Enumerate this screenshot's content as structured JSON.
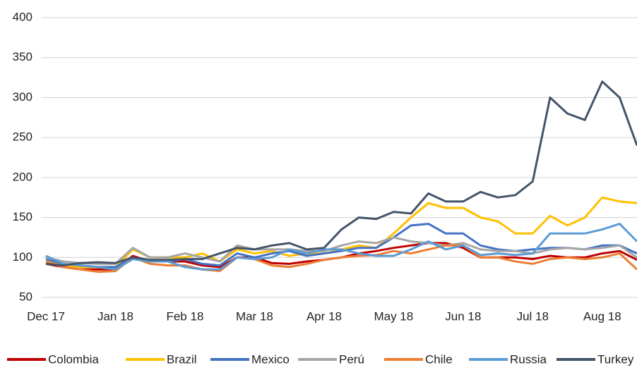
{
  "chart_data": {
    "type": "line",
    "categories": [
      "Dec 17",
      null,
      null,
      null,
      "Jan 18",
      null,
      null,
      null,
      "Feb 18",
      null,
      null,
      null,
      "Mar 18",
      null,
      null,
      null,
      "Apr 18",
      null,
      null,
      null,
      "May 18",
      null,
      null,
      null,
      "Jun 18",
      null,
      null,
      null,
      "Jul 18",
      null,
      null,
      null,
      "Aug 18",
      null,
      null
    ],
    "series": [
      {
        "name": "Colombia",
        "color": "#c00000",
        "values": [
          92,
          88,
          85,
          85,
          85,
          102,
          95,
          95,
          95,
          90,
          88,
          100,
          100,
          93,
          92,
          95,
          97,
          100,
          105,
          108,
          112,
          115,
          118,
          118,
          112,
          100,
          100,
          100,
          98,
          102,
          100,
          100,
          105,
          108,
          97
        ]
      },
      {
        "name": "Brazil",
        "color": "#ffc000",
        "values": [
          95,
          90,
          88,
          88,
          88,
          110,
          100,
          100,
          100,
          105,
          95,
          110,
          105,
          108,
          102,
          105,
          105,
          110,
          115,
          112,
          130,
          150,
          168,
          162,
          162,
          150,
          145,
          130,
          130,
          152,
          140,
          150,
          175,
          170,
          168
        ]
      },
      {
        "name": "Mexico",
        "color": "#4472c4",
        "values": [
          98,
          92,
          90,
          88,
          88,
          100,
          95,
          95,
          98,
          92,
          90,
          105,
          100,
          105,
          108,
          102,
          105,
          108,
          112,
          112,
          125,
          140,
          142,
          130,
          130,
          115,
          110,
          108,
          110,
          112,
          112,
          110,
          115,
          115,
          105
        ]
      },
      {
        "name": "Perú",
        "color": "#a5a5a5",
        "values": [
          100,
          95,
          93,
          92,
          92,
          112,
          100,
          100,
          105,
          100,
          95,
          115,
          110,
          110,
          110,
          108,
          108,
          115,
          120,
          118,
          125,
          120,
          118,
          115,
          118,
          110,
          108,
          108,
          105,
          110,
          112,
          110,
          112,
          115,
          100
        ]
      },
      {
        "name": "Chile",
        "color": "#ed7d31",
        "values": [
          95,
          88,
          85,
          82,
          83,
          100,
          92,
          90,
          90,
          85,
          83,
          100,
          98,
          90,
          88,
          92,
          97,
          100,
          102,
          103,
          108,
          105,
          110,
          115,
          115,
          100,
          100,
          95,
          92,
          98,
          100,
          98,
          100,
          105,
          85
        ]
      },
      {
        "name": "Russia",
        "color": "#5b9bd5",
        "values": [
          102,
          92,
          90,
          88,
          85,
          98,
          95,
          95,
          88,
          85,
          85,
          100,
          98,
          100,
          110,
          105,
          110,
          110,
          105,
          102,
          102,
          110,
          120,
          110,
          115,
          103,
          105,
          103,
          105,
          130,
          130,
          130,
          135,
          142,
          120
        ]
      },
      {
        "name": "Turkey",
        "color": "#44546a",
        "values": [
          92,
          90,
          93,
          94,
          93,
          100,
          97,
          97,
          98,
          98,
          105,
          112,
          110,
          115,
          118,
          110,
          112,
          135,
          150,
          148,
          157,
          155,
          180,
          170,
          170,
          182,
          175,
          178,
          195,
          300,
          280,
          272,
          320,
          300,
          240
        ]
      }
    ],
    "ylim": [
      50,
      400
    ],
    "yticks": [
      50,
      100,
      150,
      200,
      250,
      300,
      350,
      400
    ],
    "grid": true,
    "legend": "bottom"
  }
}
